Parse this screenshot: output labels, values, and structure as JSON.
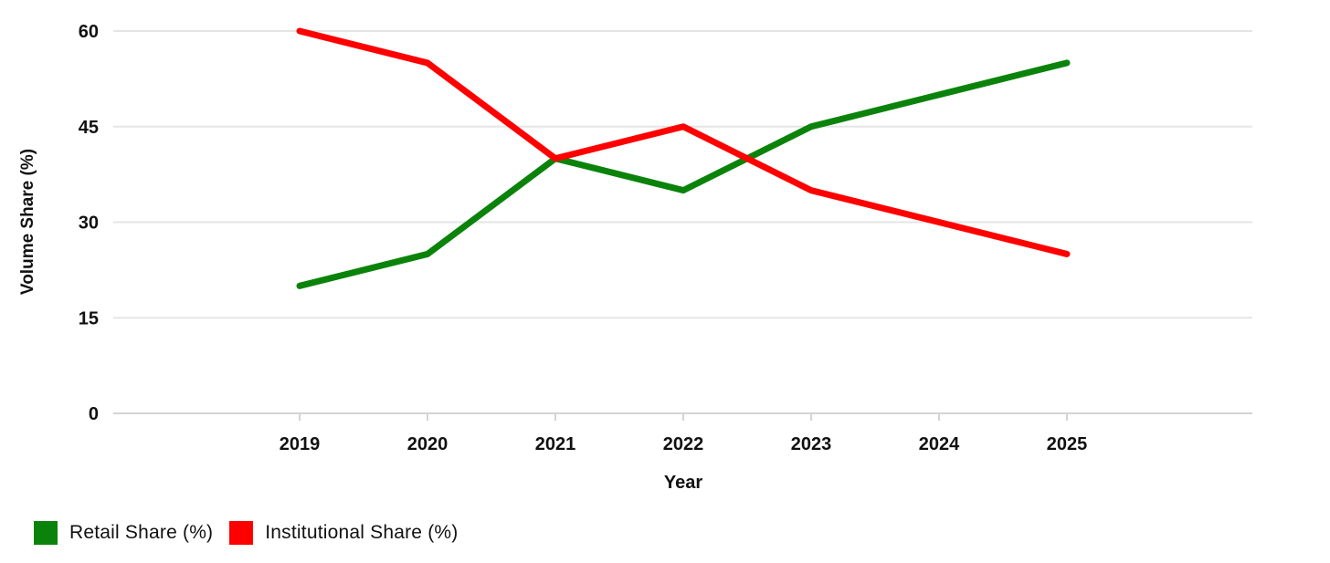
{
  "chart_data": {
    "type": "line",
    "x": [
      "2019",
      "2020",
      "2021",
      "2022",
      "2023",
      "2024",
      "2025"
    ],
    "series": [
      {
        "name": "Retail Share (%)",
        "color": "#0b830b",
        "values": [
          20,
          25,
          40,
          35,
          45,
          50,
          55
        ]
      },
      {
        "name": "Institutional Share (%)",
        "color": "#ff0000",
        "values": [
          60,
          55,
          40,
          45,
          35,
          30,
          25
        ]
      }
    ],
    "xlabel": "Year",
    "ylabel": "Volume Share (%)",
    "ylim": [
      0,
      60
    ],
    "yticks": [
      0,
      15,
      30,
      45,
      60
    ],
    "grid": "horizontal-only",
    "legend_position": "bottom-left"
  },
  "colors": {
    "grid": "#e5e5e5",
    "axis": "#d4d4d4",
    "tick_text": "#111111",
    "axis_title_text": "#111111"
  }
}
